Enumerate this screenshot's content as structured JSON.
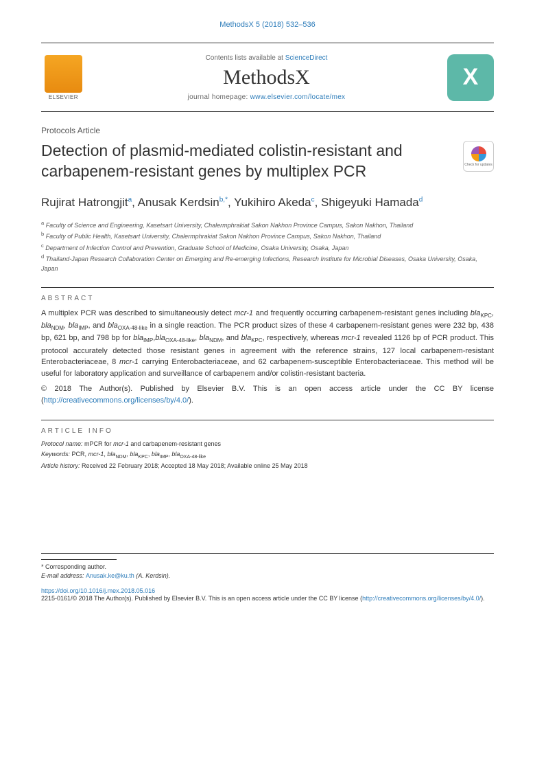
{
  "journal_ref": "MethodsX 5 (2018) 532–536",
  "header": {
    "elsevier_label": "ELSEVIER",
    "contents_prefix": "Contents lists available at ",
    "contents_link": "ScienceDirect",
    "journal_name": "MethodsX",
    "homepage_prefix": "journal homepage: ",
    "homepage_link": "www.elsevier.com/locate/mex",
    "mx_logo": "X"
  },
  "article_type": "Protocols Article",
  "title": "Detection of plasmid-mediated colistin-resistant and carbapenem-resistant genes by multiplex PCR",
  "check_updates": "Check for updates",
  "authors_html": "Rujirat Hatrongjit<sup>a</sup>, Anusak Kerdsin<sup>b,*</sup>, Yukihiro Akeda<sup>c</sup>, Shigeyuki Hamada<sup>d</sup>",
  "affiliations": {
    "a": "Faculty of Science and Engineering, Kasetsart University, Chalermphrakiat Sakon Nakhon Province Campus, Sakon Nakhon, Thailand",
    "b": "Faculty of Public Health, Kasetsart University, Chalermphrakiat Sakon Nakhon Province Campus, Sakon Nakhon, Thailand",
    "c": "Department of Infection Control and Prevention, Graduate School of Medicine, Osaka University, Osaka, Japan",
    "d": "Thailand-Japan Research Collaboration Center on Emerging and Re-emerging Infections, Research Institute for Microbial Diseases, Osaka University, Osaka, Japan"
  },
  "abstract_heading": "ABSTRACT",
  "abstract_html": "A multiplex PCR was described to simultaneously detect <em>mcr-1</em> and frequently occurring carbapenem-resistant genes including <em>bla</em><sub>KPC</sub>, <em>bla</em><sub>NDM</sub>, <em>bla</em><sub>IMP</sub>, and <em>bla</em><sub>OXA-48-like</sub> in a single reaction. The PCR product sizes of these 4 carbapenem-resistant genes were 232 bp, 438 bp, 621 bp, and 798 bp for <em>bla</em><sub>IMP</sub>,<em>bla</em><sub>OXA-48-like</sub>, <em>bla</em><sub>NDM</sub>, and <em>bla</em><sub>KPC</sub>, respectively, whereas <em>mcr-1</em> revealed 1126 bp of PCR product. This protocol accurately detected those resistant genes in agreement with the reference strains, 127 local carbapenem-resistant Enterobacteriaceae, 8 <em>mcr-1</em> carrying Enterobacteriaceae, and 62 carbapenem-susceptible Enterobacteriaceae. This method will be useful for laboratory application and surveillance of carbapenem and/or colistin-resistant bacteria.",
  "copyright_html": "© 2018 The Author(s). Published by Elsevier B.V. This is an open access article under the CC BY license (<a href=\"#\">http://creativecommons.org/licenses/by/4.0/</a>).",
  "article_info_heading": "ARTICLE INFO",
  "protocol_name_label": "Protocol name:",
  "protocol_name": "mPCR for mcr-1 and carbapenem-resistant genes",
  "keywords_label": "Keywords:",
  "keywords_html": "PCR, <em>mcr-1</em>, <em>bla</em><sub>NDM</sub>, <em>bla</em><sub>KPC</sub>, <em>bla</em><sub>IMP</sub>, <em>bla</em><sub>OXA-48-like</sub>",
  "history_label": "Article history:",
  "history": "Received 22 February 2018; Accepted 18 May 2018; Available online 25 May 2018",
  "footer": {
    "corr_label": "* Corresponding author.",
    "email_label": "E-mail address:",
    "email": "Anusak.ke@ku.th",
    "email_author": "(A. Kerdsin).",
    "doi": "https://doi.org/10.1016/j.mex.2018.05.016",
    "issn_html": "2215-0161/© 2018 The Author(s). Published by Elsevier B.V. This is an open access article under the CC BY license (<a href=\"#\">http://creativecommons.org/licenses/by/4.0/</a>)."
  },
  "colors": {
    "link": "#2b7bb9",
    "text": "#333333",
    "logo_bg": "#5db8a8",
    "elsevier_gradient_top": "#f5a623",
    "elsevier_gradient_bottom": "#e88b10"
  }
}
